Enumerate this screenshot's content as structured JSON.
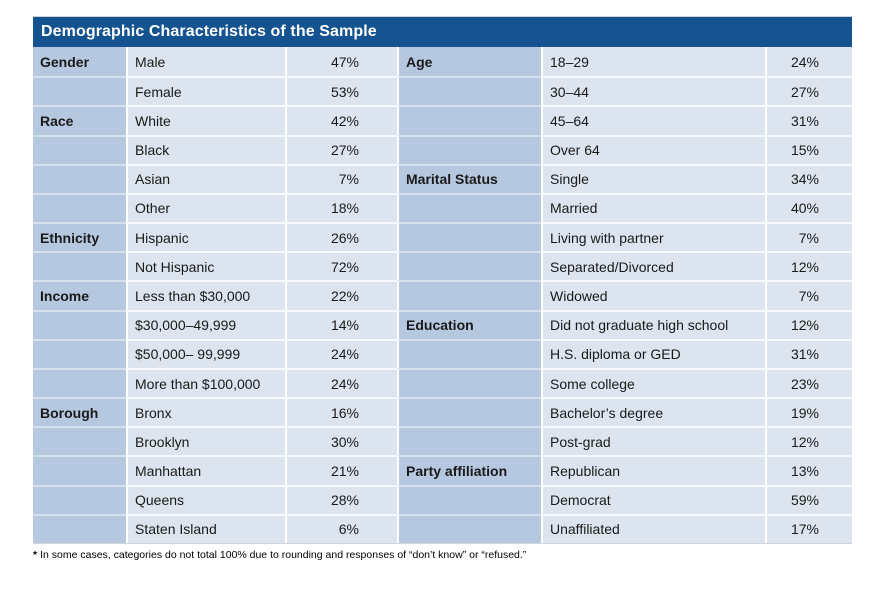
{
  "title": "Demographic Characteristics of the Sample",
  "footnote": {
    "marker": "*",
    "text": "In some cases, categories do not total 100% due to rounding and responses of “don’t know” or “refused.”"
  },
  "colors": {
    "header_bar": "#14538f",
    "category_column": "#b6c8e0",
    "data_cell": "#dce4ef",
    "title_text": "#ffffff",
    "body_text": "#1a1a1a"
  },
  "table": {
    "halves": [
      {
        "name": "left",
        "groups": [
          {
            "category": "Gender",
            "rows": [
              {
                "label": "Male",
                "value": "47%"
              },
              {
                "label": "Female",
                "value": "53%"
              }
            ]
          },
          {
            "category": "Race",
            "rows": [
              {
                "label": "White",
                "value": "42%"
              },
              {
                "label": "Black",
                "value": "27%"
              },
              {
                "label": "Asian",
                "value": "7%"
              },
              {
                "label": "Other",
                "value": "18%"
              }
            ]
          },
          {
            "category": "Ethnicity",
            "rows": [
              {
                "label": "Hispanic",
                "value": "26%"
              },
              {
                "label": "Not Hispanic",
                "value": "72%"
              }
            ]
          },
          {
            "category": "Income",
            "rows": [
              {
                "label": "Less than $30,000",
                "value": "22%"
              },
              {
                "label": "$30,000–49,999",
                "value": "14%"
              },
              {
                "label": "$50,000– 99,999",
                "value": "24%"
              },
              {
                "label": "More than $100,000",
                "value": "24%"
              }
            ]
          },
          {
            "category": "Borough",
            "rows": [
              {
                "label": "Bronx",
                "value": "16%"
              },
              {
                "label": "Brooklyn",
                "value": "30%"
              },
              {
                "label": "Manhattan",
                "value": "21%"
              },
              {
                "label": "Queens",
                "value": "28%"
              },
              {
                "label": "Staten Island",
                "value": "6%"
              }
            ]
          }
        ]
      },
      {
        "name": "right",
        "groups": [
          {
            "category": "Age",
            "rows": [
              {
                "label": "18–29",
                "value": "24%"
              },
              {
                "label": "30–44",
                "value": "27%"
              },
              {
                "label": "45–64",
                "value": "31%"
              },
              {
                "label": "Over 64",
                "value": "15%"
              }
            ]
          },
          {
            "category": "Marital Status",
            "rows": [
              {
                "label": "Single",
                "value": "34%"
              },
              {
                "label": "Married",
                "value": "40%"
              },
              {
                "label": "Living with partner",
                "value": "7%"
              },
              {
                "label": "Separated/Divorced",
                "value": "12%"
              },
              {
                "label": "Widowed",
                "value": "7%"
              }
            ]
          },
          {
            "category": "Education",
            "rows": [
              {
                "label": "Did not graduate high school",
                "value": "12%"
              },
              {
                "label": "H.S. diploma or GED",
                "value": "31%"
              },
              {
                "label": "Some college",
                "value": "23%"
              },
              {
                "label": "Bachelor’s degree",
                "value": "19%"
              },
              {
                "label": "Post-grad",
                "value": "12%"
              }
            ]
          },
          {
            "category": "Party affiliation",
            "rows": [
              {
                "label": "Republican",
                "value": "13%"
              },
              {
                "label": "Democrat",
                "value": "59%"
              },
              {
                "label": "Unaffiliated",
                "value": "17%"
              }
            ]
          }
        ]
      }
    ]
  }
}
